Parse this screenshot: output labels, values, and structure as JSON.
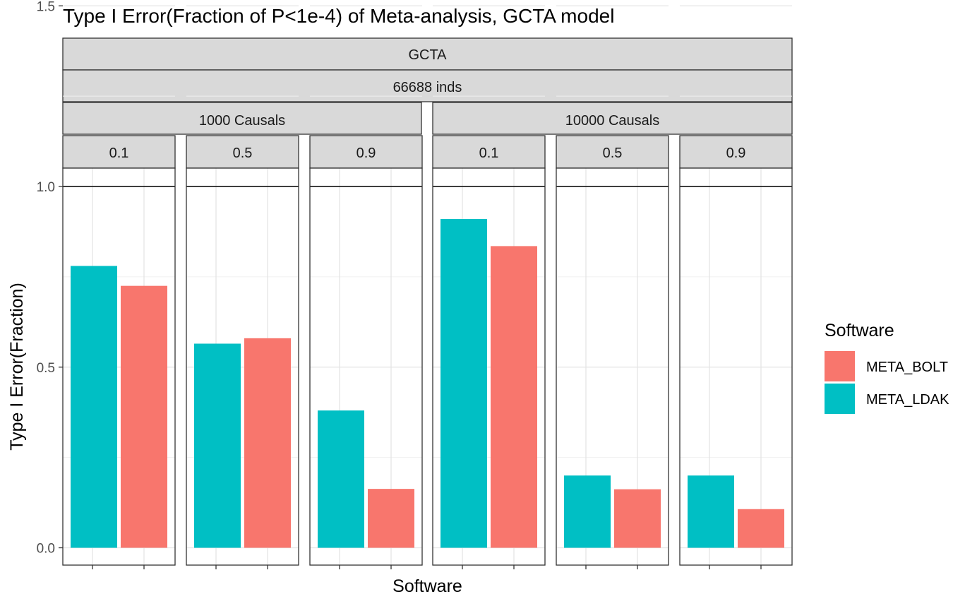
{
  "chart_data": {
    "type": "bar",
    "title": "Type I Error(Fraction of P<1e-4) of Meta-analysis, GCTA model",
    "xlabel": "Software",
    "ylabel": "Type I Error(Fraction)",
    "ylim": [
      0,
      2.1
    ],
    "yticks": [
      "0.0",
      "0.5",
      "1.0",
      "1.5",
      "2.0"
    ],
    "reference_line": 1.0,
    "grid": true,
    "legend": {
      "title": "Software",
      "placement": "right",
      "items": [
        {
          "name": "META_BOLT",
          "color": "#F8766D"
        },
        {
          "name": "META_LDAK",
          "color": "#00BFC4"
        }
      ]
    },
    "strips": {
      "model": "GCTA",
      "inds": "66688 inds",
      "causal_groups": [
        "1000 Causals",
        "10000 Causals"
      ]
    },
    "categories": [
      "META_LDAK",
      "META_BOLT"
    ],
    "panels": [
      {
        "causals": "1000 Causals",
        "label": "0.1",
        "series": [
          {
            "name": "META_LDAK",
            "value": 0.78
          },
          {
            "name": "META_BOLT",
            "value": 0.725
          }
        ]
      },
      {
        "causals": "1000 Causals",
        "label": "0.5",
        "series": [
          {
            "name": "META_LDAK",
            "value": 0.565
          },
          {
            "name": "META_BOLT",
            "value": 0.58
          }
        ]
      },
      {
        "causals": "1000 Causals",
        "label": "0.9",
        "series": [
          {
            "name": "META_LDAK",
            "value": 0.38
          },
          {
            "name": "META_BOLT",
            "value": 0.163
          }
        ]
      },
      {
        "causals": "10000 Causals",
        "label": "0.1",
        "series": [
          {
            "name": "META_LDAK",
            "value": 0.91
          },
          {
            "name": "META_BOLT",
            "value": 0.835
          }
        ]
      },
      {
        "causals": "10000 Causals",
        "label": "0.5",
        "series": [
          {
            "name": "META_LDAK",
            "value": 0.2
          },
          {
            "name": "META_BOLT",
            "value": 0.162
          }
        ]
      },
      {
        "causals": "10000 Causals",
        "label": "0.9",
        "series": [
          {
            "name": "META_LDAK",
            "value": 0.2
          },
          {
            "name": "META_BOLT",
            "value": 0.107
          }
        ]
      }
    ]
  }
}
